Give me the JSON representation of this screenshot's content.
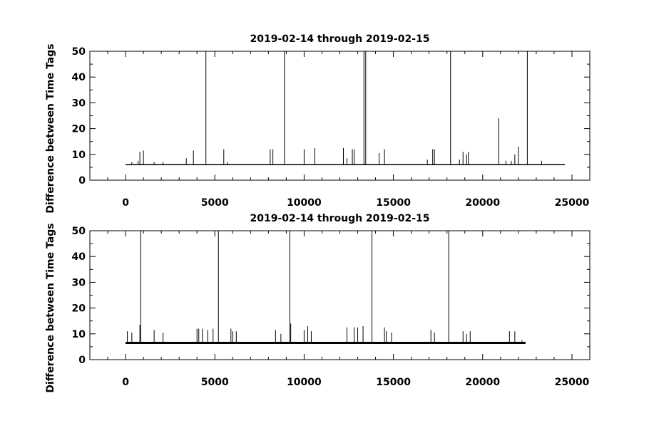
{
  "chart_data": [
    {
      "type": "line",
      "title": "2019-02-14 through 2019-02-15",
      "xlabel": "",
      "ylabel": "Difference between Time Tags",
      "xlim": [
        -2000,
        26000
      ],
      "ylim": [
        0,
        50
      ],
      "xticks": [
        0,
        5000,
        10000,
        15000,
        20000,
        25000
      ],
      "yticks": [
        0,
        10,
        20,
        30,
        40,
        50
      ],
      "baseline": 6,
      "x_extent": [
        0,
        24600
      ],
      "spikes": [
        {
          "x": 350,
          "y": 7
        },
        {
          "x": 700,
          "y": 7.5
        },
        {
          "x": 800,
          "y": 11
        },
        {
          "x": 1000,
          "y": 11.5
        },
        {
          "x": 1600,
          "y": 7
        },
        {
          "x": 2100,
          "y": 7
        },
        {
          "x": 3400,
          "y": 8.5
        },
        {
          "x": 3800,
          "y": 11.5
        },
        {
          "x": 4500,
          "y": 50
        },
        {
          "x": 5500,
          "y": 12
        },
        {
          "x": 5700,
          "y": 7
        },
        {
          "x": 8100,
          "y": 12
        },
        {
          "x": 8250,
          "y": 12
        },
        {
          "x": 8900,
          "y": 50
        },
        {
          "x": 10000,
          "y": 12
        },
        {
          "x": 10600,
          "y": 12.5
        },
        {
          "x": 12200,
          "y": 12.5
        },
        {
          "x": 12400,
          "y": 8.5
        },
        {
          "x": 12700,
          "y": 12
        },
        {
          "x": 12800,
          "y": 12
        },
        {
          "x": 13350,
          "y": 50
        },
        {
          "x": 13450,
          "y": 50
        },
        {
          "x": 14200,
          "y": 10.5
        },
        {
          "x": 14500,
          "y": 12
        },
        {
          "x": 16900,
          "y": 8
        },
        {
          "x": 17200,
          "y": 12
        },
        {
          "x": 17300,
          "y": 12
        },
        {
          "x": 18200,
          "y": 50
        },
        {
          "x": 18700,
          "y": 8
        },
        {
          "x": 18900,
          "y": 11
        },
        {
          "x": 19100,
          "y": 10
        },
        {
          "x": 19200,
          "y": 11
        },
        {
          "x": 20900,
          "y": 24
        },
        {
          "x": 21300,
          "y": 7.5
        },
        {
          "x": 21600,
          "y": 7.5
        },
        {
          "x": 21800,
          "y": 10
        },
        {
          "x": 22000,
          "y": 13
        },
        {
          "x": 22500,
          "y": 50
        },
        {
          "x": 23300,
          "y": 7.5
        }
      ]
    },
    {
      "type": "line",
      "title": "2019-02-14 through 2019-02-15",
      "xlabel": "",
      "ylabel": "Difference between Time Tags",
      "xlim": [
        -2000,
        26000
      ],
      "ylim": [
        0,
        50
      ],
      "xticks": [
        0,
        5000,
        10000,
        15000,
        20000,
        25000
      ],
      "yticks": [
        0,
        10,
        20,
        30,
        40,
        50
      ],
      "baseline": 6.5,
      "x_extent": [
        0,
        22400
      ],
      "spikes": [
        {
          "x": 100,
          "y": 11
        },
        {
          "x": 350,
          "y": 10.5
        },
        {
          "x": 800,
          "y": 13.5
        },
        {
          "x": 850,
          "y": 50
        },
        {
          "x": 1600,
          "y": 11.5
        },
        {
          "x": 2100,
          "y": 10.5
        },
        {
          "x": 4000,
          "y": 12
        },
        {
          "x": 4100,
          "y": 12
        },
        {
          "x": 4300,
          "y": 12
        },
        {
          "x": 4600,
          "y": 11.5
        },
        {
          "x": 4900,
          "y": 12
        },
        {
          "x": 5200,
          "y": 50
        },
        {
          "x": 5900,
          "y": 12
        },
        {
          "x": 6000,
          "y": 11
        },
        {
          "x": 6200,
          "y": 11
        },
        {
          "x": 8400,
          "y": 11.5
        },
        {
          "x": 8700,
          "y": 10
        },
        {
          "x": 9200,
          "y": 50
        },
        {
          "x": 9250,
          "y": 14
        },
        {
          "x": 10000,
          "y": 11.5
        },
        {
          "x": 10200,
          "y": 13
        },
        {
          "x": 10400,
          "y": 11
        },
        {
          "x": 12400,
          "y": 12.5
        },
        {
          "x": 12800,
          "y": 12.5
        },
        {
          "x": 13000,
          "y": 12.5
        },
        {
          "x": 13300,
          "y": 13
        },
        {
          "x": 13800,
          "y": 50
        },
        {
          "x": 14500,
          "y": 12.5
        },
        {
          "x": 14600,
          "y": 11
        },
        {
          "x": 14900,
          "y": 10.5
        },
        {
          "x": 17100,
          "y": 11.5
        },
        {
          "x": 17300,
          "y": 10.5
        },
        {
          "x": 18100,
          "y": 50
        },
        {
          "x": 18900,
          "y": 11
        },
        {
          "x": 19100,
          "y": 10
        },
        {
          "x": 19300,
          "y": 11
        },
        {
          "x": 21500,
          "y": 11
        },
        {
          "x": 21800,
          "y": 11
        },
        {
          "x": 22200,
          "y": 7.5
        }
      ]
    }
  ]
}
